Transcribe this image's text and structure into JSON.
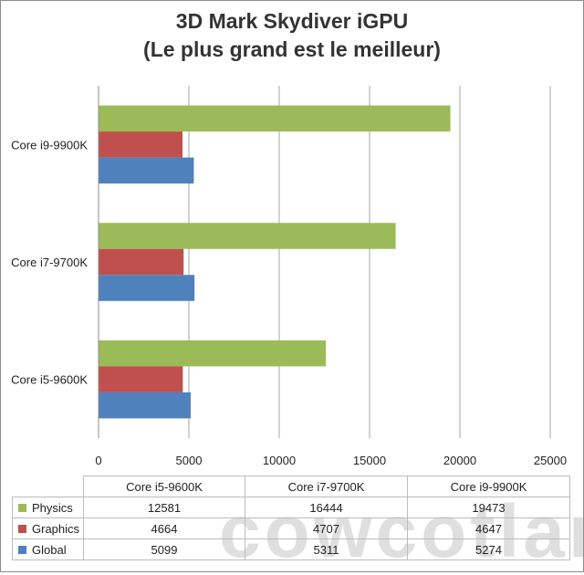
{
  "chart_data": {
    "type": "bar",
    "orientation": "horizontal",
    "title": "3D Mark Skydiver iGPU",
    "subtitle": "(Le plus grand est le meilleur)",
    "categories": [
      "Core i5-9600K",
      "Core i7-9700K",
      "Core i9-9900K"
    ],
    "series": [
      {
        "name": "Physics",
        "color": "#9bbb59",
        "values": [
          12581,
          16444,
          19473
        ]
      },
      {
        "name": "Graphics",
        "color": "#c0504d",
        "values": [
          4664,
          4707,
          4647
        ]
      },
      {
        "name": "Global",
        "color": "#4f81bd",
        "values": [
          5099,
          5311,
          5274
        ]
      }
    ],
    "xlim": [
      0,
      25000
    ],
    "xticks": [
      0,
      5000,
      10000,
      15000,
      20000,
      25000
    ],
    "grid": true,
    "legend": "data-table"
  },
  "watermark": "cowcotland"
}
